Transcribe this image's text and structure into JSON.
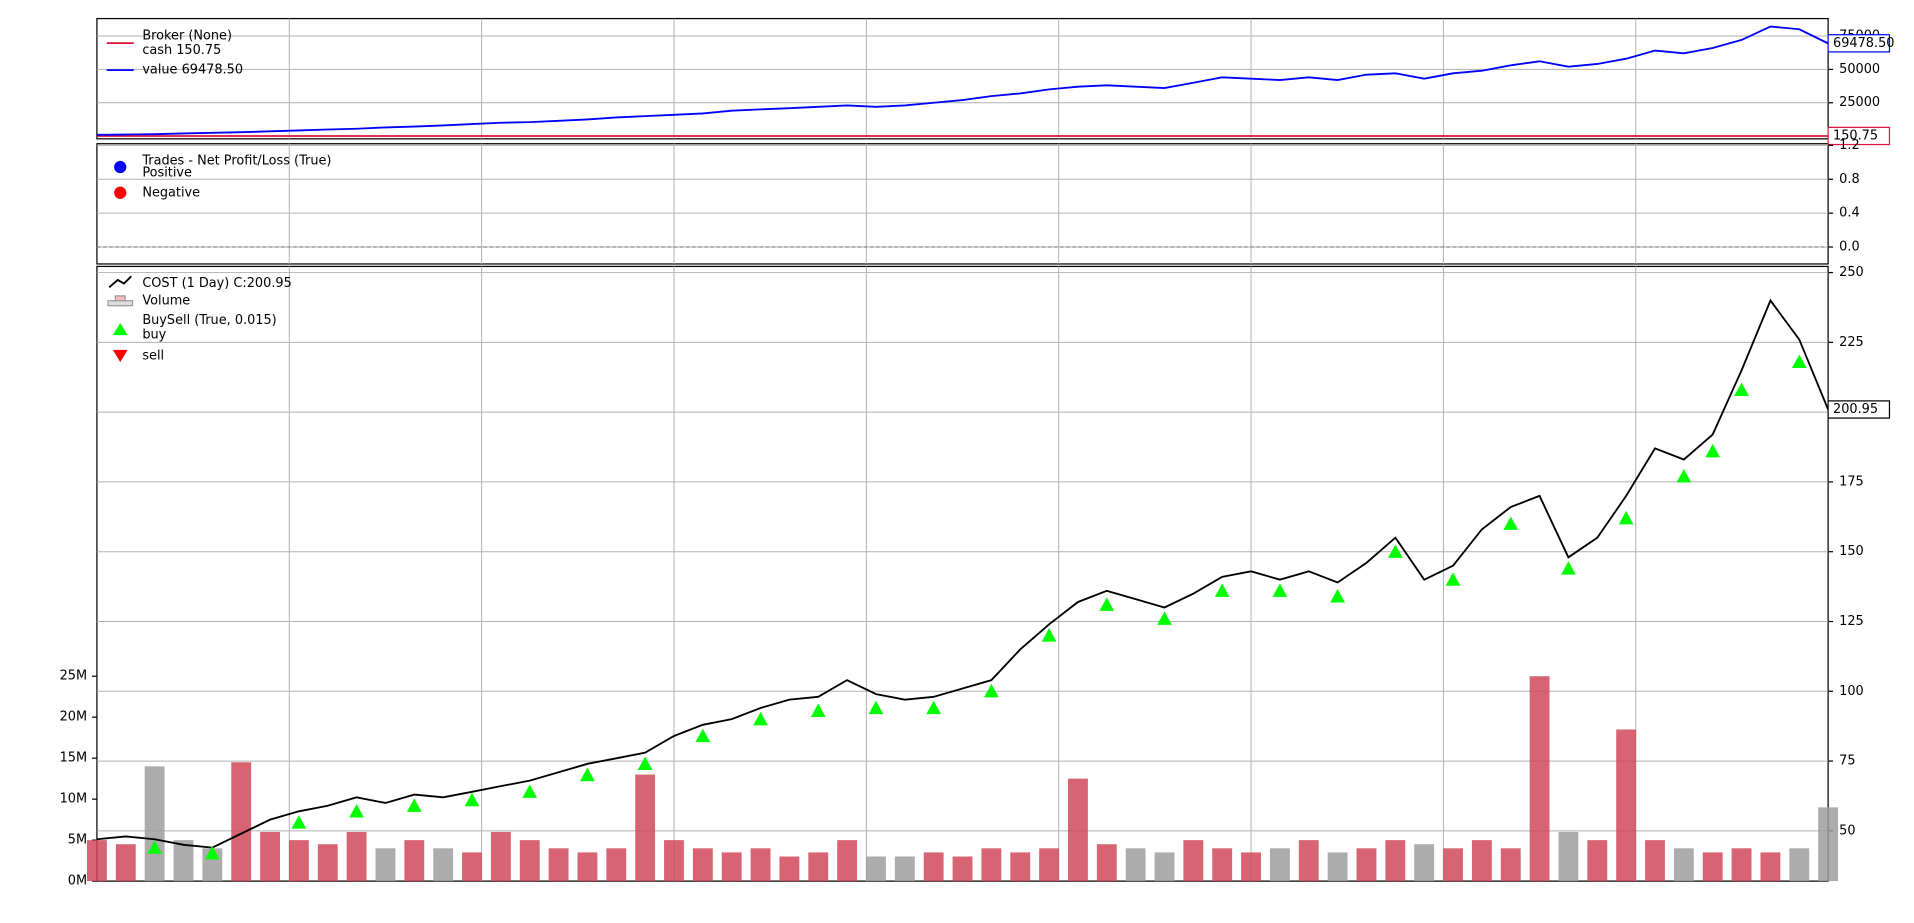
{
  "chart_data": [
    {
      "type": "line",
      "title": "Broker (None)",
      "xlim": [
        0,
        60
      ],
      "ylim": [
        -2000,
        88000
      ],
      "yticks": [
        25000,
        50000,
        75000
      ],
      "grid": true,
      "series": [
        {
          "name": "cash 150.75",
          "color": "#dc143c",
          "last_value_label": "150.75",
          "values": [
            150.75,
            150.75,
            150.75,
            150.75,
            150.75,
            150.75,
            150.75,
            150.75,
            150.75,
            150.75,
            150.75,
            150.75,
            150.75,
            150.75,
            150.75,
            150.75,
            150.75,
            150.75,
            150.75,
            150.75,
            150.75,
            150.75,
            150.75,
            150.75,
            150.75,
            150.75,
            150.75,
            150.75,
            150.75,
            150.75,
            150.75,
            150.75,
            150.75,
            150.75,
            150.75,
            150.75,
            150.75,
            150.75,
            150.75,
            150.75,
            150.75,
            150.75,
            150.75,
            150.75,
            150.75,
            150.75,
            150.75,
            150.75,
            150.75,
            150.75,
            150.75,
            150.75,
            150.75,
            150.75,
            150.75,
            150.75,
            150.75,
            150.75,
            150.75,
            150.75,
            150.75
          ]
        },
        {
          "name": "value 69478.50",
          "color": "#0000ff",
          "last_value_label": "69478.50",
          "values": [
            1000,
            1200,
            1500,
            2000,
            2500,
            3000,
            3600,
            4200,
            5000,
            5500,
            6500,
            7200,
            8000,
            9000,
            10000,
            10500,
            11500,
            12500,
            14000,
            15000,
            16000,
            17000,
            19000,
            20000,
            21000,
            22000,
            23000,
            22000,
            23000,
            25000,
            27000,
            30000,
            32000,
            35000,
            37000,
            38000,
            37000,
            36000,
            40000,
            44000,
            43000,
            42000,
            44000,
            42000,
            46000,
            47000,
            43000,
            47000,
            49000,
            53000,
            56000,
            52000,
            54000,
            58000,
            64000,
            62000,
            66000,
            72000,
            82000,
            80000,
            69478.5
          ]
        }
      ]
    },
    {
      "type": "scatter",
      "title": "Trades - Net Profit/Loss (True)",
      "xlim": [
        0,
        60
      ],
      "ylim": [
        -0.2,
        1.22
      ],
      "yticks": [
        {
          "value": 0,
          "label": "0.0"
        },
        0.4,
        0.8,
        1.2
      ],
      "grid": true,
      "series": [
        {
          "name": "Positive",
          "color": "#0000ff",
          "x": [],
          "values": []
        },
        {
          "name": "Negative",
          "color": "#ff0000",
          "x": [],
          "values": []
        }
      ]
    },
    {
      "type": "line",
      "title": "COST (1 Day) C:200.95",
      "xlim": [
        0,
        60
      ],
      "ylim": [
        32,
        252.2
      ],
      "yticks": [
        50,
        75,
        100,
        125,
        150,
        175,
        200,
        225,
        250
      ],
      "y2lim": [
        0,
        75000000
      ],
      "y2ticks": [
        {
          "value": 0,
          "label": "0M"
        },
        {
          "value": 5000000,
          "label": "5M"
        },
        {
          "value": 10000000,
          "label": "10M"
        },
        {
          "value": 15000000,
          "label": "15M"
        },
        {
          "value": 20000000,
          "label": "20M"
        },
        {
          "value": 25000000,
          "label": "25M"
        }
      ],
      "grid": true,
      "series": [
        {
          "name": "Volume",
          "type": "bar",
          "axis": "y2",
          "color": "#d0485a",
          "values": [
            5000000,
            4500000,
            14000000,
            5000000,
            4000000,
            14500000,
            6000000,
            5000000,
            4500000,
            6000000,
            4000000,
            5000000,
            4000000,
            3500000,
            6000000,
            5000000,
            4000000,
            3500000,
            4000000,
            13000000,
            5000000,
            4000000,
            3500000,
            4000000,
            3000000,
            3500000,
            5000000,
            3000000,
            3000000,
            3500000,
            3000000,
            4000000,
            3500000,
            4000000,
            12500000,
            4500000,
            4000000,
            3500000,
            5000000,
            4000000,
            3500000,
            4000000,
            5000000,
            3500000,
            4000000,
            5000000,
            4500000,
            4000000,
            5000000,
            4000000,
            25000000,
            6000000,
            5000000,
            18500000,
            5000000,
            4000000,
            3500000,
            4000000,
            3500000,
            4000000,
            9000000
          ]
        },
        {
          "name": "COST (1 Day) C:200.95",
          "type": "line",
          "color": "#000000",
          "values": [
            47,
            48,
            47,
            45,
            44,
            49,
            54,
            57,
            59,
            62,
            60,
            63,
            62,
            64,
            66,
            68,
            71,
            74,
            76,
            78,
            84,
            88,
            90,
            94,
            97,
            98,
            104,
            99,
            97,
            98,
            101,
            104,
            115,
            124,
            132,
            136,
            133,
            130,
            135,
            141,
            143,
            140,
            143,
            139,
            146,
            155,
            140,
            145,
            158,
            166,
            170,
            148,
            155,
            170,
            187,
            183,
            192,
            215,
            240,
            226,
            200.95
          ]
        },
        {
          "name": "BuySell (True, 0.015)",
          "type": "scatter",
          "legend_sub": "buy",
          "color": "#00ff00",
          "x": [
            2,
            4,
            7,
            9,
            11,
            13,
            15,
            17,
            19,
            21,
            23,
            25,
            27,
            29,
            31,
            33,
            35,
            37,
            39,
            41,
            43,
            45,
            47,
            49,
            51,
            53,
            55,
            56,
            57,
            59
          ],
          "values": [
            44,
            42,
            53,
            57,
            59,
            61,
            64,
            70,
            74,
            84,
            90,
            93,
            94,
            94,
            100,
            120,
            131,
            126,
            136,
            136,
            134,
            150,
            140,
            160,
            144,
            162,
            177,
            186,
            208,
            218
          ]
        },
        {
          "name": "sell",
          "type": "scatter",
          "color": "#ff0000",
          "x": [],
          "values": []
        }
      ]
    }
  ]
}
